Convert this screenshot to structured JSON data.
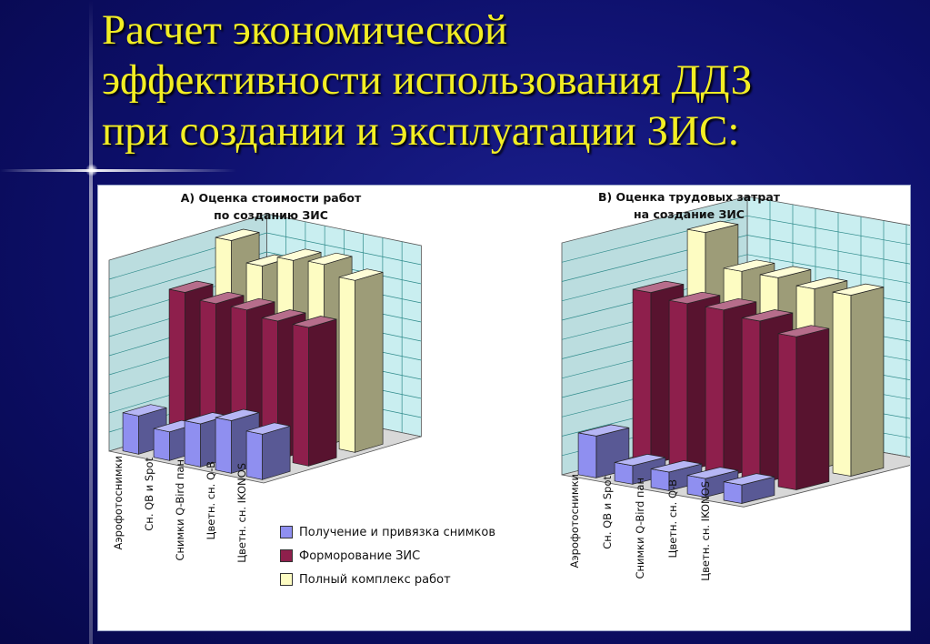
{
  "slide": {
    "title_line1": "Расчет экономической",
    "title_line2": "эффективности использования ДДЗ",
    "title_line3": "при создании и эксплуатации ЗИС:"
  },
  "colors": {
    "background": "#0d0f6a",
    "title": "#f2ee24",
    "wall": "#c9eef0",
    "grid": "#2e8a8a",
    "series": [
      "#8f8ff0",
      "#8e1f4c",
      "#fdfcc2"
    ]
  },
  "legend": [
    {
      "label": "Получение и привязка снимков",
      "color": "#8f8ff0"
    },
    {
      "label": "Форморование ЗИС",
      "color": "#8e1f4c"
    },
    {
      "label": "Полный комплекс работ",
      "color": "#fdfcc2"
    }
  ],
  "chart_data": [
    {
      "type": "bar",
      "title_line1": "А) Оценка стоимости работ",
      "title_line2": "по созданию ЗИС",
      "categories": [
        "Аэрофотоснимки",
        "Сн. QB и Spot",
        "Снимки Q-Bird пан",
        "Цветн. сн. Q-B",
        "Цветн. сн. IKONOS"
      ],
      "series": [
        {
          "name": "Получение и привязка снимков",
          "values": [
            16,
            12,
            18,
            22,
            19
          ]
        },
        {
          "name": "Форморование ЗИС",
          "values": [
            62,
            60,
            60,
            58,
            58
          ]
        },
        {
          "name": "Полный комплекс работ",
          "values": [
            78,
            70,
            75,
            76,
            72
          ]
        }
      ],
      "ylim": [
        0,
        80
      ]
    },
    {
      "type": "bar",
      "title_line1": "В) Оценка трудовых затрат",
      "title_line2": "на создание ЗИС",
      "categories": [
        "Аэрофотоснимки",
        "Сн. QB и Spot",
        "Снимки Q-Bird пан",
        "Цветн. сн. Q-B",
        "Цветн. сн. IKONOS"
      ],
      "series": [
        {
          "name": "Получение и привязка снимков",
          "values": [
            18,
            8,
            8,
            8,
            8
          ]
        },
        {
          "name": "Форморование ЗИС",
          "values": [
            74,
            72,
            72,
            70,
            66
          ]
        },
        {
          "name": "Полный комплекс работ",
          "values": [
            94,
            80,
            80,
            78,
            78
          ]
        }
      ],
      "ylim": [
        0,
        100
      ]
    }
  ]
}
